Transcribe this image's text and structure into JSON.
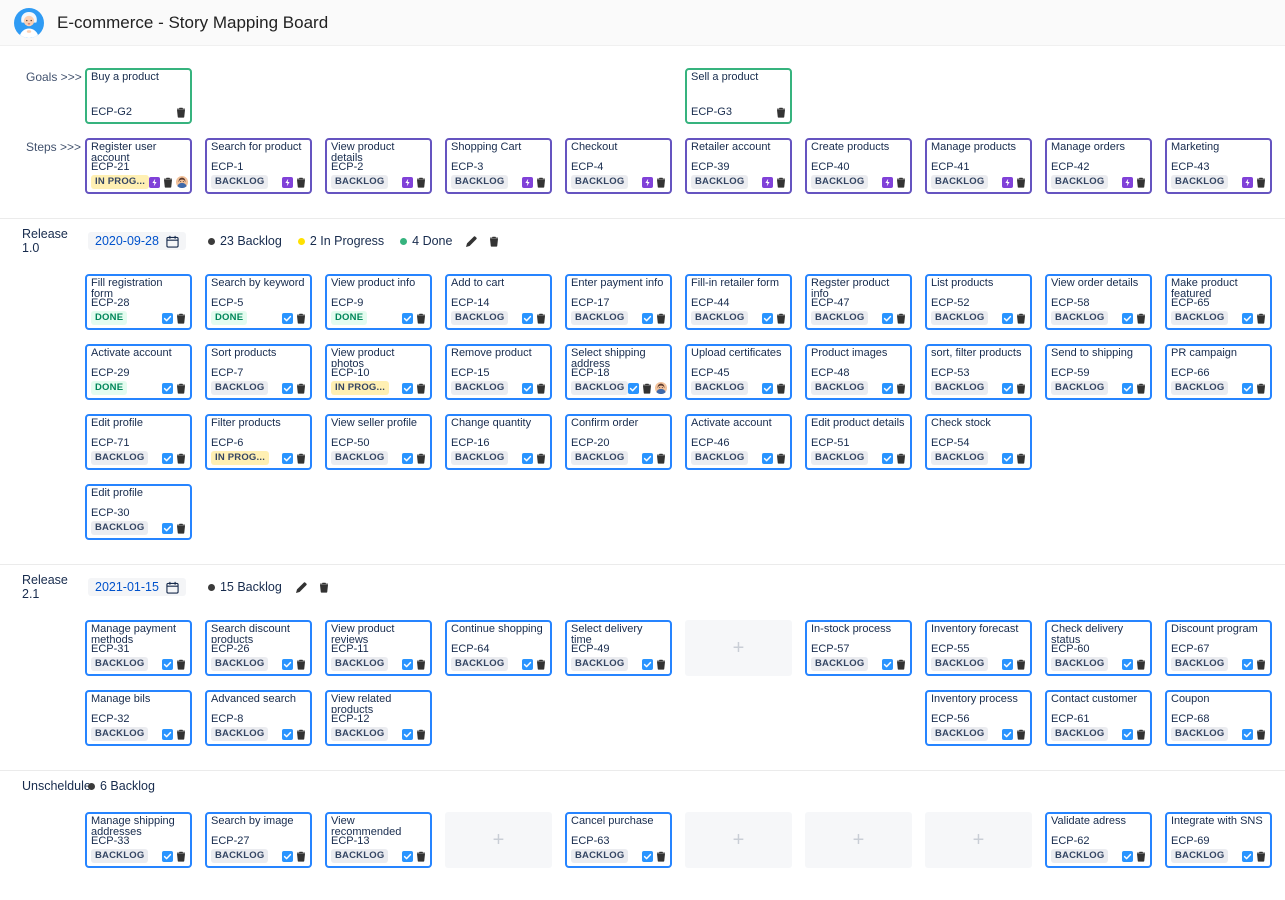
{
  "header": {
    "title": "E-commerce - Story Mapping Board"
  },
  "gutter": {
    "goals_label": "Goals >>>",
    "steps_label": "Steps >>>"
  },
  "add_placeholder": "+",
  "colors": {
    "goal_border": "#36b37e",
    "step_border": "#6554c0",
    "story_border": "#2684ff",
    "backlog_badge_bg": "#ebecf0",
    "backlog_badge_text": "#344563",
    "done_badge_bg": "#e3fcef",
    "done_badge_text": "#00875a",
    "inprogress_badge_bg": "#fff0b3",
    "date_text": "#0052cc"
  },
  "icons": {
    "trash-icon": "trash-can",
    "edit-icon": "pencil",
    "calendar-icon": "calendar",
    "story-icon": "blue-check-square",
    "epic-icon": "purple-bolt-square",
    "assignee-avatar": "person",
    "add-icon": "+"
  },
  "goals_row": [
    {
      "col": 0,
      "title": "Buy a product",
      "id": "ECP-G2"
    },
    {
      "col": 5,
      "title": "Sell a product",
      "id": "ECP-G3"
    }
  ],
  "steps_row": [
    {
      "title": "Register user account",
      "id": "ECP-21",
      "status": "IN PROG...",
      "status_type": "inprogress",
      "assignee": true
    },
    {
      "title": "Search for product",
      "id": "ECP-1",
      "status": "BACKLOG",
      "status_type": "backlog"
    },
    {
      "title": "View product details",
      "id": "ECP-2",
      "status": "BACKLOG",
      "status_type": "backlog"
    },
    {
      "title": "Shopping Cart",
      "id": "ECP-3",
      "status": "BACKLOG",
      "status_type": "backlog"
    },
    {
      "title": "Checkout",
      "id": "ECP-4",
      "status": "BACKLOG",
      "status_type": "backlog"
    },
    {
      "title": "Retailer account",
      "id": "ECP-39",
      "status": "BACKLOG",
      "status_type": "backlog"
    },
    {
      "title": "Create products",
      "id": "ECP-40",
      "status": "BACKLOG",
      "status_type": "backlog"
    },
    {
      "title": "Manage products",
      "id": "ECP-41",
      "status": "BACKLOG",
      "status_type": "backlog"
    },
    {
      "title": "Manage orders",
      "id": "ECP-42",
      "status": "BACKLOG",
      "status_type": "backlog"
    },
    {
      "title": "Marketing",
      "id": "ECP-43",
      "status": "BACKLOG",
      "status_type": "backlog"
    }
  ],
  "sections": [
    {
      "name": "Release 1.0",
      "date": "2020-09-28",
      "has_actions": true,
      "stats": [
        {
          "count_label": "23 Backlog",
          "dot_color": "#3b3b3b"
        },
        {
          "count_label": "2 In Progress",
          "dot_color": "#ffe100"
        },
        {
          "count_label": "4 Done",
          "dot_color": "#36b37e"
        }
      ],
      "rows": [
        [
          {
            "title": "Fill registration form",
            "id": "ECP-28",
            "status": "DONE",
            "status_type": "done"
          },
          {
            "title": "Search by keyword",
            "id": "ECP-5",
            "status": "DONE",
            "status_type": "done"
          },
          {
            "title": "View product info",
            "id": "ECP-9",
            "status": "DONE",
            "status_type": "done"
          },
          {
            "title": "Add to cart",
            "id": "ECP-14",
            "status": "BACKLOG",
            "status_type": "backlog"
          },
          {
            "title": "Enter payment info",
            "id": "ECP-17",
            "status": "BACKLOG",
            "status_type": "backlog"
          },
          {
            "title": "Fill-in retailer form",
            "id": "ECP-44",
            "status": "BACKLOG",
            "status_type": "backlog"
          },
          {
            "title": "Regster product info",
            "id": "ECP-47",
            "status": "BACKLOG",
            "status_type": "backlog"
          },
          {
            "title": "List products",
            "id": "ECP-52",
            "status": "BACKLOG",
            "status_type": "backlog"
          },
          {
            "title": "View order details",
            "id": "ECP-58",
            "status": "BACKLOG",
            "status_type": "backlog"
          },
          {
            "title": "Make product featured",
            "id": "ECP-65",
            "status": "BACKLOG",
            "status_type": "backlog"
          }
        ],
        [
          {
            "title": "Activate account",
            "id": "ECP-29",
            "status": "DONE",
            "status_type": "done"
          },
          {
            "title": "Sort products",
            "id": "ECP-7",
            "status": "BACKLOG",
            "status_type": "backlog"
          },
          {
            "title": "View product photos",
            "id": "ECP-10",
            "status": "IN PROG...",
            "status_type": "inprogress"
          },
          {
            "title": "Remove product",
            "id": "ECP-15",
            "status": "BACKLOG",
            "status_type": "backlog"
          },
          {
            "title": "Select shipping address",
            "id": "ECP-18",
            "status": "BACKLOG",
            "status_type": "backlog",
            "assignee": true
          },
          {
            "title": "Upload certificates",
            "id": "ECP-45",
            "status": "BACKLOG",
            "status_type": "backlog"
          },
          {
            "title": "Product images",
            "id": "ECP-48",
            "status": "BACKLOG",
            "status_type": "backlog"
          },
          {
            "title": "sort, filter products",
            "id": "ECP-53",
            "status": "BACKLOG",
            "status_type": "backlog"
          },
          {
            "title": "Send to shipping",
            "id": "ECP-59",
            "status": "BACKLOG",
            "status_type": "backlog"
          },
          {
            "title": "PR campaign",
            "id": "ECP-66",
            "status": "BACKLOG",
            "status_type": "backlog"
          }
        ],
        [
          {
            "title": "Edit profile",
            "id": "ECP-71",
            "status": "BACKLOG",
            "status_type": "backlog"
          },
          {
            "title": "Filter products",
            "id": "ECP-6",
            "status": "IN PROG...",
            "status_type": "inprogress"
          },
          {
            "title": "View seller profile",
            "id": "ECP-50",
            "status": "BACKLOG",
            "status_type": "backlog"
          },
          {
            "title": "Change quantity",
            "id": "ECP-16",
            "status": "BACKLOG",
            "status_type": "backlog"
          },
          {
            "title": "Confirm order",
            "id": "ECP-20",
            "status": "BACKLOG",
            "status_type": "backlog"
          },
          {
            "title": "Activate account",
            "id": "ECP-46",
            "status": "BACKLOG",
            "status_type": "backlog"
          },
          {
            "title": "Edit product details",
            "id": "ECP-51",
            "status": "BACKLOG",
            "status_type": "backlog"
          },
          {
            "title": "Check stock",
            "id": "ECP-54",
            "status": "BACKLOG",
            "status_type": "backlog"
          },
          null,
          null
        ],
        [
          {
            "title": "Edit profile",
            "id": "ECP-30",
            "status": "BACKLOG",
            "status_type": "backlog"
          },
          null,
          null,
          null,
          null,
          null,
          null,
          null,
          null,
          null
        ]
      ]
    },
    {
      "name": "Release 2.1",
      "date": "2021-01-15",
      "has_actions": true,
      "stats": [
        {
          "count_label": "15 Backlog",
          "dot_color": "#3b3b3b"
        }
      ],
      "rows": [
        [
          {
            "title": "Manage payment methods",
            "id": "ECP-31",
            "status": "BACKLOG",
            "status_type": "backlog"
          },
          {
            "title": "Search discount products",
            "id": "ECP-26",
            "status": "BACKLOG",
            "status_type": "backlog"
          },
          {
            "title": "View product reviews",
            "id": "ECP-11",
            "status": "BACKLOG",
            "status_type": "backlog"
          },
          {
            "title": "Continue shopping",
            "id": "ECP-64",
            "status": "BACKLOG",
            "status_type": "backlog"
          },
          {
            "title": "Select delivery time",
            "id": "ECP-49",
            "status": "BACKLOG",
            "status_type": "backlog"
          },
          {
            "type": "add"
          },
          {
            "title": "In-stock process",
            "id": "ECP-57",
            "status": "BACKLOG",
            "status_type": "backlog"
          },
          {
            "title": "Inventory forecast",
            "id": "ECP-55",
            "status": "BACKLOG",
            "status_type": "backlog"
          },
          {
            "title": "Check delivery status",
            "id": "ECP-60",
            "status": "BACKLOG",
            "status_type": "backlog"
          },
          {
            "title": "Discount program",
            "id": "ECP-67",
            "status": "BACKLOG",
            "status_type": "backlog"
          }
        ],
        [
          {
            "title": "Manage bils",
            "id": "ECP-32",
            "status": "BACKLOG",
            "status_type": "backlog"
          },
          {
            "title": "Advanced search",
            "id": "ECP-8",
            "status": "BACKLOG",
            "status_type": "backlog"
          },
          {
            "title": "View related products",
            "id": "ECP-12",
            "status": "BACKLOG",
            "status_type": "backlog"
          },
          null,
          null,
          null,
          null,
          {
            "title": "Inventory process",
            "id": "ECP-56",
            "status": "BACKLOG",
            "status_type": "backlog"
          },
          {
            "title": "Contact customer",
            "id": "ECP-61",
            "status": "BACKLOG",
            "status_type": "backlog"
          },
          {
            "title": "Coupon",
            "id": "ECP-68",
            "status": "BACKLOG",
            "status_type": "backlog"
          }
        ]
      ]
    },
    {
      "name": "Unscheldule",
      "date": null,
      "has_actions": false,
      "stats": [
        {
          "count_label": "6 Backlog",
          "dot_color": "#3b3b3b"
        }
      ],
      "rows": [
        [
          {
            "title": "Manage shipping addresses",
            "id": "ECP-33",
            "status": "BACKLOG",
            "status_type": "backlog"
          },
          {
            "title": "Search by image",
            "id": "ECP-27",
            "status": "BACKLOG",
            "status_type": "backlog"
          },
          {
            "title": "View recommended products",
            "id": "ECP-13",
            "status": "BACKLOG",
            "status_type": "backlog"
          },
          {
            "type": "add"
          },
          {
            "title": "Cancel purchase",
            "id": "ECP-63",
            "status": "BACKLOG",
            "status_type": "backlog"
          },
          {
            "type": "add"
          },
          {
            "type": "add"
          },
          {
            "type": "add"
          },
          {
            "title": "Validate adress",
            "id": "ECP-62",
            "status": "BACKLOG",
            "status_type": "backlog"
          },
          {
            "title": "Integrate with SNS",
            "id": "ECP-69",
            "status": "BACKLOG",
            "status_type": "backlog"
          }
        ]
      ]
    }
  ]
}
